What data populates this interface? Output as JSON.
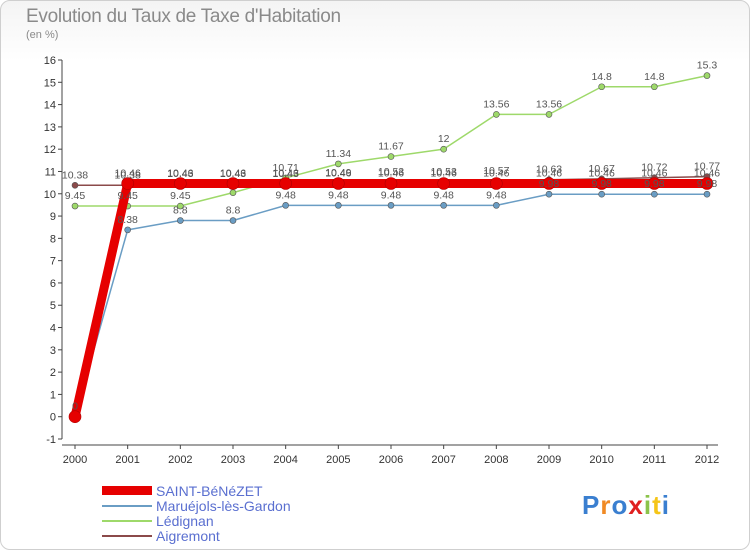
{
  "title": "Evolution du Taux de Taxe d'Habitation",
  "unit": "(en %)",
  "logo": "Proxiti",
  "chart_data": {
    "type": "line",
    "x": [
      "2000",
      "2001",
      "2002",
      "2003",
      "2004",
      "2005",
      "2006",
      "2007",
      "2008",
      "2009",
      "2010",
      "2011",
      "2012"
    ],
    "y_ticks": [
      -1,
      0,
      1,
      2,
      3,
      4,
      5,
      6,
      7,
      8,
      9,
      10,
      11,
      12,
      13,
      14,
      15,
      16
    ],
    "ylim": [
      -1,
      16
    ],
    "series": [
      {
        "name": "SAINT-BéNéZET",
        "color": "#e60000",
        "width": 9,
        "show_labels": true,
        "values": [
          0,
          10.46,
          10.46,
          10.46,
          10.46,
          10.46,
          10.46,
          10.46,
          10.46,
          10.46,
          10.46,
          10.46,
          10.46
        ]
      },
      {
        "name": "Maruéjols-lès-Gardon",
        "color": "#6a9dc4",
        "width": 1.5,
        "show_labels": true,
        "values": [
          0,
          8.38,
          8.8,
          8.8,
          9.48,
          9.48,
          9.48,
          9.48,
          9.48,
          9.98,
          9.98,
          9.98,
          9.98
        ]
      },
      {
        "name": "Lédignan",
        "color": "#9ed96a",
        "width": 1.5,
        "show_labels": true,
        "values": [
          9.45,
          9.45,
          9.45,
          10.05,
          10.71,
          11.34,
          11.67,
          12,
          13.56,
          13.56,
          14.8,
          14.8,
          15.3
        ]
      },
      {
        "name": "Aigremont",
        "color": "#8b4a4a",
        "width": 1.5,
        "show_labels": false,
        "values": [
          10.38,
          10.38,
          10.43,
          10.43,
          10.43,
          10.49,
          10.53,
          10.53,
          10.57,
          10.63,
          10.67,
          10.72,
          10.77
        ]
      }
    ],
    "point_labels": [
      {
        "x": "2000",
        "y": 10.38,
        "text": "10.38"
      },
      {
        "x": "2000",
        "y": 9.45,
        "text": "9.45"
      },
      {
        "x": "2000",
        "y": 0,
        "text": "0"
      },
      {
        "x": "2001",
        "y": 10.46,
        "text": "10.46"
      },
      {
        "x": "2001",
        "y": 10.38,
        "text": "10.38"
      },
      {
        "x": "2001",
        "y": 9.45,
        "text": "9.45"
      },
      {
        "x": "2001",
        "y": 8.38,
        "text": "8.38"
      },
      {
        "x": "2002",
        "y": 10.46,
        "text": "10.46"
      },
      {
        "x": "2002",
        "y": 10.43,
        "text": "10.43"
      },
      {
        "x": "2002",
        "y": 9.45,
        "text": "9.45"
      },
      {
        "x": "2002",
        "y": 8.8,
        "text": "8.8"
      },
      {
        "x": "2003",
        "y": 10.46,
        "text": "10.46"
      },
      {
        "x": "2003",
        "y": 10.43,
        "text": "10.43"
      },
      {
        "x": "2003",
        "y": 8.8,
        "text": "8.8"
      },
      {
        "x": "2004",
        "y": 10.71,
        "text": "10.71"
      },
      {
        "x": "2004",
        "y": 10.46,
        "text": "10.46"
      },
      {
        "x": "2004",
        "y": 10.43,
        "text": "10.43"
      },
      {
        "x": "2004",
        "y": 9.48,
        "text": "9.48"
      },
      {
        "x": "2005",
        "y": 11.34,
        "text": "11.34"
      },
      {
        "x": "2005",
        "y": 10.46,
        "text": "10.46"
      },
      {
        "x": "2005",
        "y": 10.49,
        "text": "10.49"
      },
      {
        "x": "2005",
        "y": 9.48,
        "text": "9.48"
      },
      {
        "x": "2006",
        "y": 11.67,
        "text": "11.67"
      },
      {
        "x": "2006",
        "y": 10.46,
        "text": "10.46"
      },
      {
        "x": "2006",
        "y": 10.53,
        "text": "10.53"
      },
      {
        "x": "2006",
        "y": 9.48,
        "text": "9.48"
      },
      {
        "x": "2007",
        "y": 12,
        "text": "12"
      },
      {
        "x": "2007",
        "y": 10.46,
        "text": "10.46"
      },
      {
        "x": "2007",
        "y": 10.53,
        "text": "10.53"
      },
      {
        "x": "2007",
        "y": 9.48,
        "text": "9.48"
      },
      {
        "x": "2008",
        "y": 13.56,
        "text": "13.56"
      },
      {
        "x": "2008",
        "y": 10.46,
        "text": "10.46"
      },
      {
        "x": "2008",
        "y": 10.57,
        "text": "10.57"
      },
      {
        "x": "2008",
        "y": 9.48,
        "text": "9.48"
      },
      {
        "x": "2009",
        "y": 13.56,
        "text": "13.56"
      },
      {
        "x": "2009",
        "y": 10.46,
        "text": "10.46"
      },
      {
        "x": "2009",
        "y": 10.63,
        "text": "10.63"
      },
      {
        "x": "2009",
        "y": 9.98,
        "text": "9.98"
      },
      {
        "x": "2010",
        "y": 14.8,
        "text": "14.8"
      },
      {
        "x": "2010",
        "y": 10.46,
        "text": "10.46"
      },
      {
        "x": "2010",
        "y": 10.67,
        "text": "10.67"
      },
      {
        "x": "2010",
        "y": 9.98,
        "text": "9.98"
      },
      {
        "x": "2011",
        "y": 14.8,
        "text": "14.8"
      },
      {
        "x": "2011",
        "y": 10.46,
        "text": "10.46"
      },
      {
        "x": "2011",
        "y": 10.72,
        "text": "10.72"
      },
      {
        "x": "2011",
        "y": 9.98,
        "text": "9.98"
      },
      {
        "x": "2012",
        "y": 15.3,
        "text": "15.3"
      },
      {
        "x": "2012",
        "y": 10.46,
        "text": "10.46"
      },
      {
        "x": "2012",
        "y": 10.77,
        "text": "10.77"
      },
      {
        "x": "2012",
        "y": 9.98,
        "text": "9.98"
      }
    ],
    "legend": [
      "SAINT-BéNéZET",
      "Maruéjols-lès-Gardon",
      "Lédignan",
      "Aigremont"
    ],
    "grid": false
  }
}
